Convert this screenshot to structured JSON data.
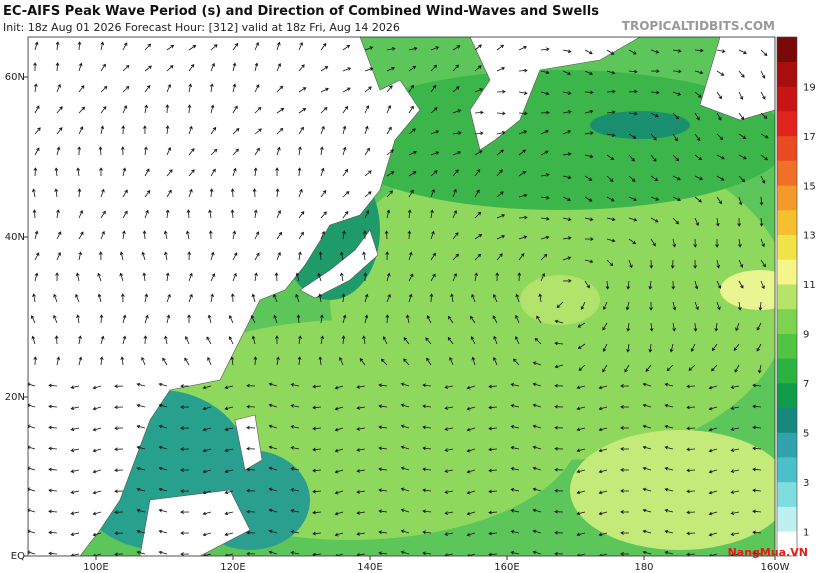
{
  "header": {
    "title": "EC-AIFS Peak Wave Period (s) and Direction of Combined Wind-Waves and Swells",
    "info": "Init: 18z Aug 01 2026   Forecast Hour: [312]   valid at 18z Fri, Aug 14 2026",
    "site": "TROPICALTIDBITS.COM"
  },
  "map": {
    "lat_labels": [
      "60N",
      "40N",
      "20N",
      "EQ"
    ],
    "lon_labels": [
      "100E",
      "120E",
      "140E",
      "160E",
      "180",
      "160W"
    ]
  },
  "colorbar": {
    "labels": [
      "1",
      "3",
      "5",
      "7",
      "9",
      "11",
      "13",
      "15",
      "17",
      "19"
    ]
  },
  "watermark": "NangMua.VN"
}
